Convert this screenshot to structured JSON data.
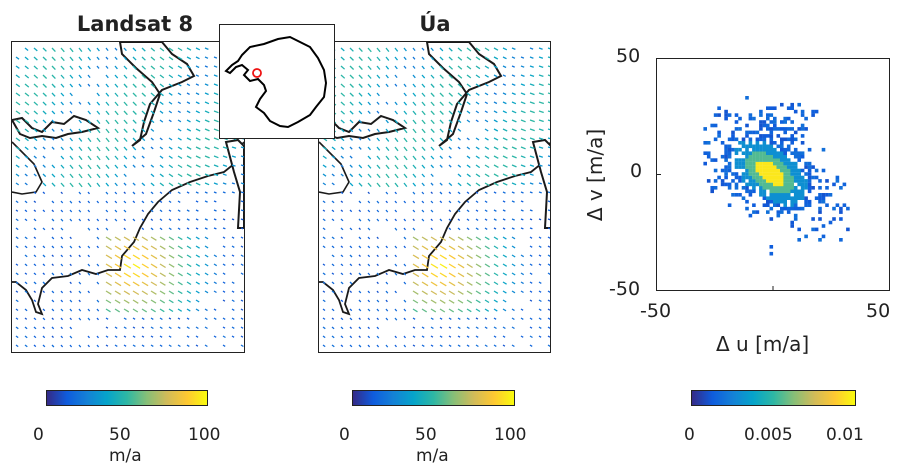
{
  "figure": {
    "left_title": "Landsat 8",
    "middle_title": "Úa"
  },
  "colorbars": [
    {
      "ticks": [
        "0",
        "50",
        "100"
      ],
      "label": "m/a",
      "range": [
        0,
        100
      ]
    },
    {
      "ticks": [
        "0",
        "50",
        "100"
      ],
      "label": "m/a",
      "range": [
        0,
        100
      ]
    },
    {
      "ticks": [
        "0",
        "0.005",
        "0.01"
      ],
      "label": "",
      "range": [
        0,
        0.01
      ]
    }
  ],
  "colormap": [
    "#352a87",
    "#0f5cdd",
    "#1481d6",
    "#06a4ca",
    "#2eb7a4",
    "#87bf77",
    "#d1bb59",
    "#fec832",
    "#f9fb0e"
  ],
  "chart_data": [
    {
      "type": "heatmap",
      "xlabel": "Δ u [m/a]",
      "ylabel": "Δ v [m/a]",
      "xlim": [
        -50,
        50
      ],
      "ylim": [
        -50,
        50
      ],
      "xticks": [
        "-50",
        "50"
      ],
      "yticks": [
        "50",
        "0",
        "-50"
      ],
      "xtick_values": [
        -50,
        50
      ],
      "ytick_values": [
        50,
        0,
        -50
      ],
      "mid_xtick": "0",
      "mode": [
        -2,
        0
      ],
      "color_range": [
        0,
        0.01
      ]
    }
  ]
}
